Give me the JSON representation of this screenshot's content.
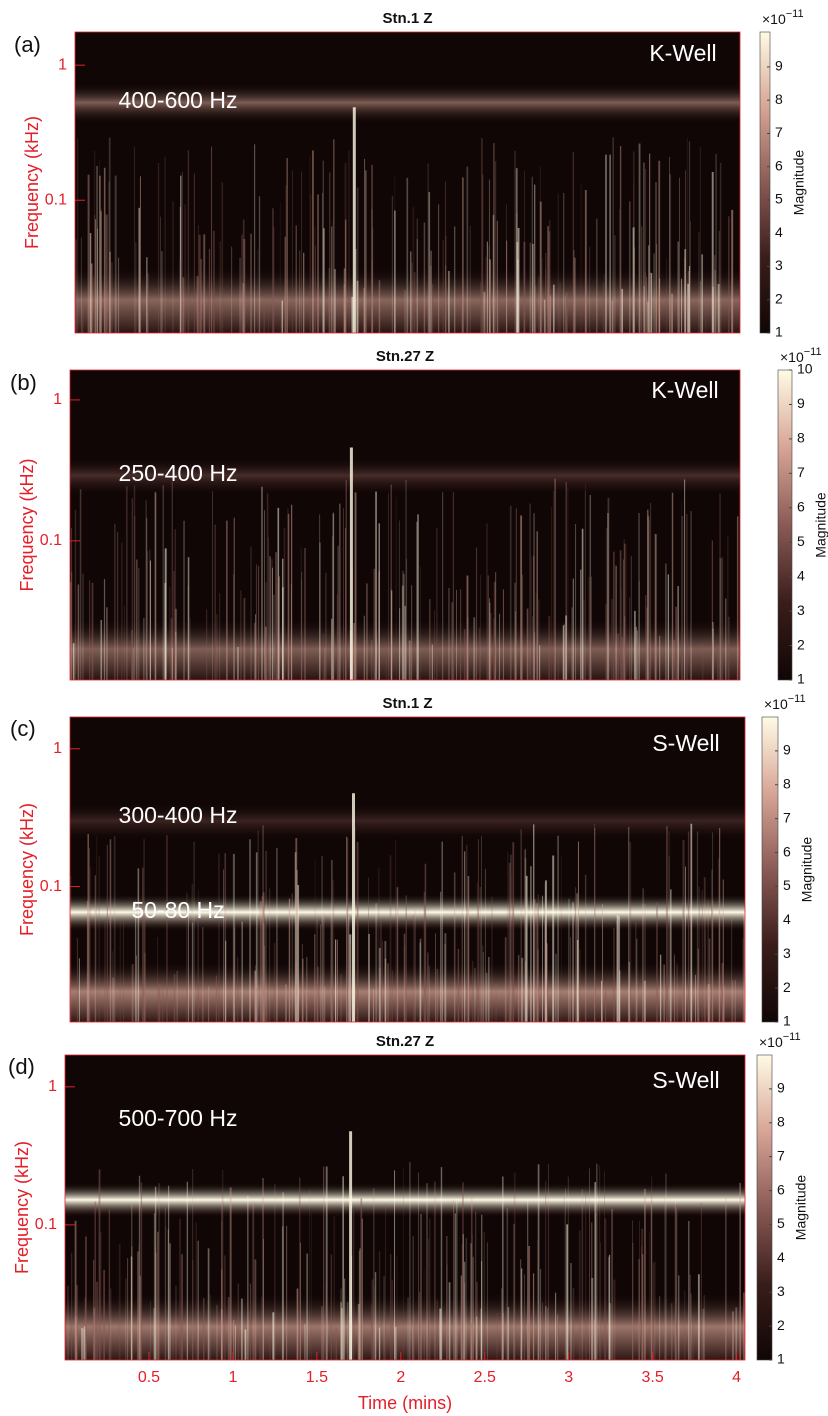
{
  "chart_data": [
    {
      "type": "heatmap",
      "panel_label": "(a)",
      "title": "Stn.1 Z",
      "annotations": [
        "K-Well",
        "400-600 Hz"
      ],
      "ylabel": "Frequency (kHz)",
      "log_y": true,
      "ylim": [
        0.0104,
        1.76
      ],
      "yticks": [
        0.1,
        1
      ],
      "axis_color": "#e3202a",
      "colormap": [
        "#100605",
        "#3a1d1a",
        "#8a5a55",
        "#d7a596",
        "#fffbe6"
      ],
      "colorbar_label": "Magnitude",
      "colorbar_multiplier": "×10",
      "colorbar_power": "−11",
      "clim": [
        1,
        10.05
      ],
      "cticks": [
        1,
        2,
        3,
        4,
        5,
        6,
        7,
        8,
        9
      ]
    },
    {
      "type": "heatmap",
      "panel_label": "(b)",
      "title": "Stn.27 Z",
      "annotations": [
        "K-Well",
        "250-400 Hz"
      ],
      "ylabel": "Frequency (kHz)",
      "log_y": true,
      "ylim": [
        0.0103,
        1.63
      ],
      "yticks": [
        0.1,
        1
      ],
      "axis_color": "#e3202a",
      "colormap": [
        "#100605",
        "#3a1d1a",
        "#8a5a55",
        "#d7a596",
        "#fffbe6"
      ],
      "colorbar_label": "Magnitude",
      "colorbar_multiplier": "×10",
      "colorbar_power": "−11",
      "clim": [
        1,
        10
      ],
      "cticks": [
        1,
        2,
        3,
        4,
        5,
        6,
        7,
        8,
        9,
        10
      ]
    },
    {
      "type": "heatmap",
      "panel_label": "(c)",
      "title": "Stn.1 Z",
      "annotations": [
        "S-Well",
        "300-400 Hz",
        "50-80 Hz"
      ],
      "ylabel": "Frequency (kHz)",
      "log_y": true,
      "ylim": [
        0.0104,
        1.7
      ],
      "yticks": [
        0.1,
        1
      ],
      "axis_color": "#e3202a",
      "colormap": [
        "#100605",
        "#3a1d1a",
        "#8a5a55",
        "#d7a596",
        "#fffbe6"
      ],
      "colorbar_label": "Magnitude",
      "colorbar_multiplier": "×10",
      "colorbar_power": "−11",
      "clim": [
        1,
        10
      ],
      "cticks": [
        1,
        2,
        3,
        4,
        5,
        6,
        7,
        8,
        9
      ]
    },
    {
      "type": "heatmap",
      "panel_label": "(d)",
      "title": "Stn.27 Z",
      "annotations": [
        "S-Well",
        "500-700 Hz"
      ],
      "ylabel": "Frequency (kHz)",
      "xlabel": "Time (mins)",
      "log_y": true,
      "ylim": [
        0.0105,
        1.7
      ],
      "yticks": [
        0.1,
        1
      ],
      "xlim": [
        0,
        4.05
      ],
      "xticks": [
        0.5,
        1,
        1.5,
        2,
        2.5,
        3,
        3.5,
        4
      ],
      "axis_color": "#e3202a",
      "colormap": [
        "#100605",
        "#3a1d1a",
        "#8a5a55",
        "#d7a596",
        "#fffbe6"
      ],
      "colorbar_label": "Magnitude",
      "colorbar_multiplier": "×10",
      "colorbar_power": "−11",
      "clim": [
        1,
        10
      ],
      "cticks": [
        1,
        2,
        3,
        4,
        5,
        6,
        7,
        8,
        9
      ]
    }
  ]
}
